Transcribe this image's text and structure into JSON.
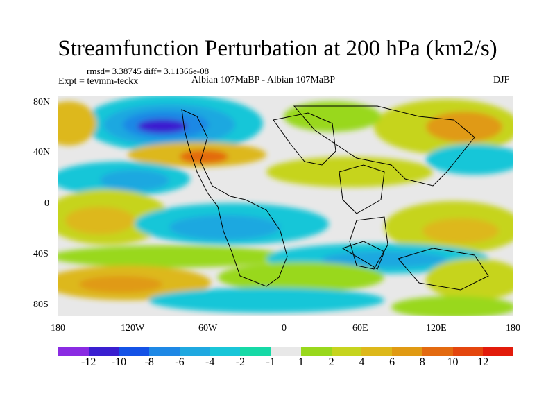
{
  "title": "Streamfunction Perturbation at 200 hPa (km2/s)",
  "stats": "rmsd= 3.38745 diff= 3.11366e-08",
  "expt": "Expt = tevmm-teckx",
  "comparison": "Albian   107MaBP - Albian   107MaBP",
  "season": "DJF",
  "axes": {
    "x_ticks": [
      "180",
      "120W",
      "60W",
      "0",
      "60E",
      "120E",
      "180"
    ],
    "y_ticks": [
      "80N",
      "40N",
      "0",
      "40S",
      "80S"
    ]
  },
  "colorbar": {
    "labels": [
      "-12",
      "-10",
      "-8",
      "-6",
      "-4",
      "-2",
      "-1",
      "1",
      "2",
      "4",
      "6",
      "8",
      "10",
      "12"
    ],
    "colors": [
      "#8a2be2",
      "#3a1fd0",
      "#1452e6",
      "#1e88e5",
      "#1fa8e0",
      "#19c6d8",
      "#16d9a6",
      "#e8e8e8",
      "#99d81c",
      "#c6d41e",
      "#ddb81a",
      "#e09a13",
      "#e36a10",
      "#e4460e",
      "#e21b0b"
    ]
  },
  "map_data": {
    "type": "filled-contour",
    "projection": "cylindrical-equidistant",
    "lon_range": [
      -180,
      180
    ],
    "lat_range": [
      -90,
      90
    ],
    "units": "km2/s"
  }
}
